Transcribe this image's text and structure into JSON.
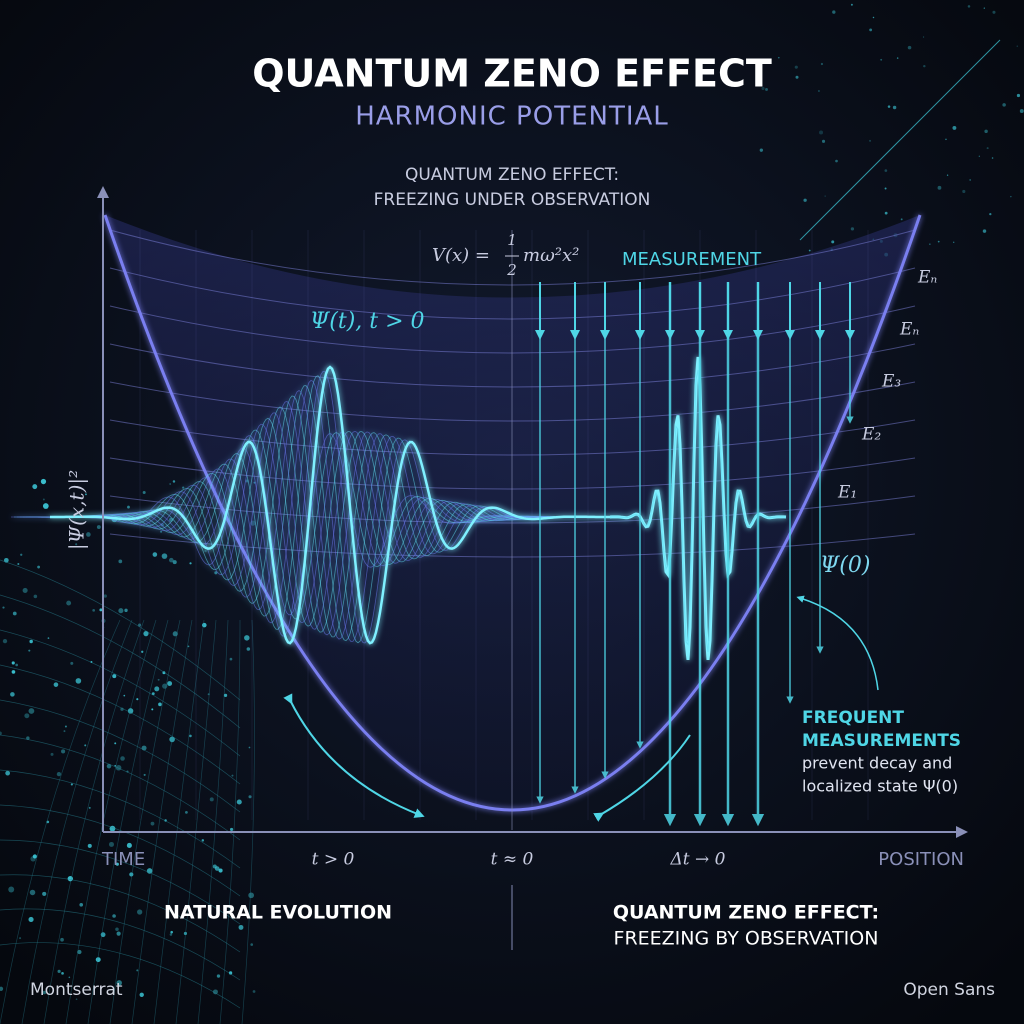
{
  "header": {
    "title": "QUANTUM ZENO EFFECT",
    "subtitle": "HARMONIC POTENTIAL",
    "caption": [
      "QUANTUM ZENO EFFECT:",
      "FREEZING UNDER OBSERVATION"
    ]
  },
  "diagram": {
    "equation": {
      "left": "V(x) =",
      "numerator": "1",
      "denominator": "2",
      "right": "mω²x²"
    },
    "measurement_label": "MEASUREMENT",
    "evolving_label": "Ψ(t), t > 0",
    "y_axis_label": "|Ψ(x,t)|²",
    "energy_levels": [
      "Eₙ",
      "Eₙ",
      "E₃",
      "E₂",
      "E₁"
    ],
    "initial_state_label": "Ψ(0)",
    "annotation": [
      "FREQUENT",
      "MEASUREMENTS",
      "prevent decay and",
      "localized state Ψ(0)"
    ],
    "x_axis_labels": [
      "TIME",
      "t > 0",
      "t ≈ 0",
      "Δt → 0",
      "POSITION"
    ]
  },
  "footer": {
    "left": "NATURAL EVOLUTION",
    "right": [
      "QUANTUM ZENO EFFECT:",
      "FREEZING BY OBSERVATION"
    ]
  },
  "corners": {
    "left": "Montserrat",
    "right": "Open Sans"
  }
}
